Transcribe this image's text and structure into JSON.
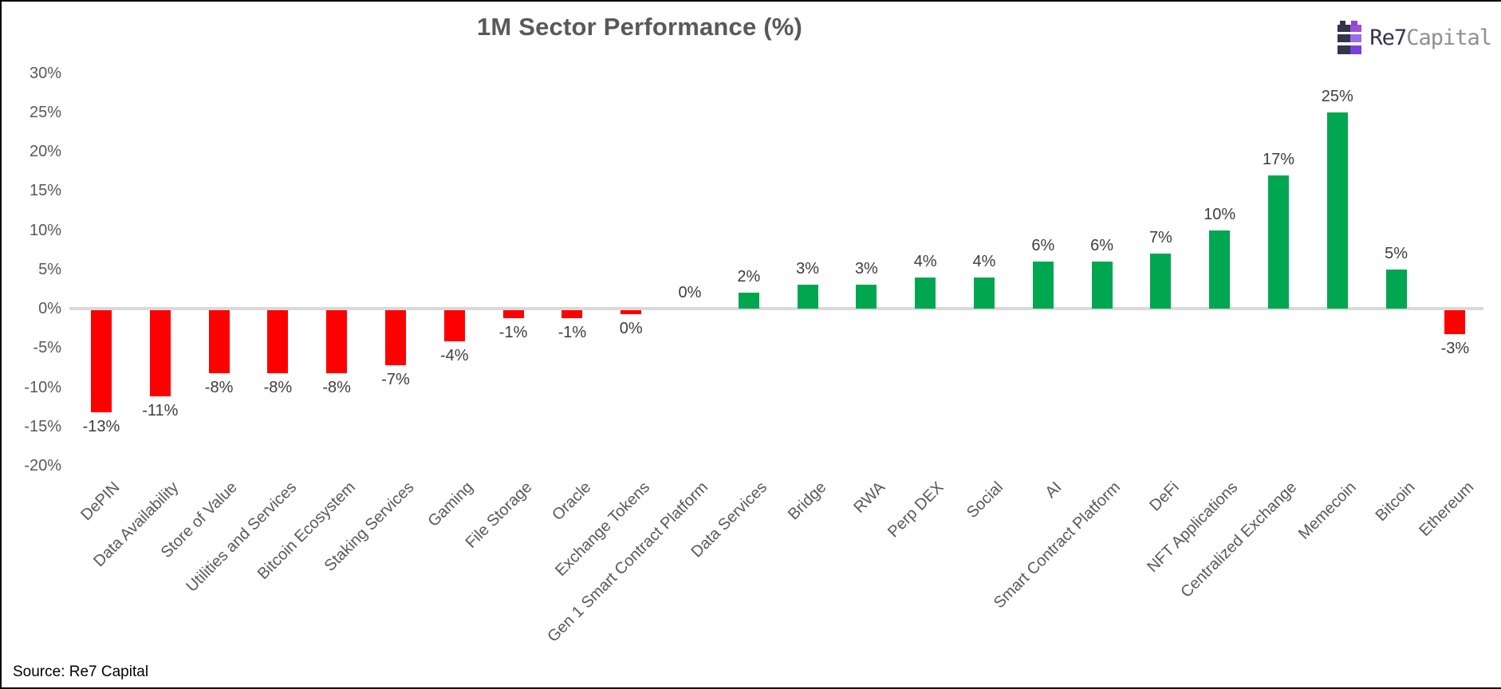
{
  "header": {
    "title": "1M Sector Performance (%)"
  },
  "logo": {
    "name_primary": "Re7",
    "name_secondary": "Capital",
    "icon": "castle-bars-icon",
    "colors": {
      "navy": "#32324c",
      "purple": "#8b46e0",
      "light_purple": "#9d6ae8",
      "gray_text": "#8e8e96"
    }
  },
  "footer": {
    "source": "Source: Re7 Capital"
  },
  "chart_data": {
    "type": "bar",
    "title": "1M Sector Performance (%)",
    "categories": [
      "DePIN",
      "Data Availability",
      "Store of Value",
      "Utilities and Services",
      "Bitcoin Ecosystem",
      "Staking Services",
      "Gaming",
      "File Storage",
      "Oracle",
      "Exchange Tokens",
      "Gen 1 Smart Contract Platform",
      "Data Services",
      "Bridge",
      "RWA",
      "Perp DEX",
      "Social",
      "AI",
      "Smart Contract Platform",
      "DeFi",
      "NFT Applications",
      "Centralized Exchange",
      "Memecoin",
      "Bitcoin",
      "Ethereum"
    ],
    "values": [
      -13,
      -11,
      -8,
      -8,
      -8,
      -7,
      -4,
      -1,
      -1,
      0,
      0,
      2,
      3,
      3,
      4,
      4,
      6,
      6,
      7,
      10,
      17,
      25,
      5,
      -3
    ],
    "labels": [
      "-13%",
      "-11%",
      "-8%",
      "-8%",
      "-8%",
      "-7%",
      "-4%",
      "-1%",
      "-1%",
      "0%",
      "0%",
      "2%",
      "3%",
      "3%",
      "4%",
      "4%",
      "6%",
      "6%",
      "7%",
      "10%",
      "17%",
      "25%",
      "5%",
      "-3%"
    ],
    "render_values": [
      -13,
      -11,
      -8,
      -8,
      -8,
      -7,
      -4,
      -1,
      -1,
      -0.5,
      0,
      2,
      3,
      3,
      4,
      4,
      6,
      6,
      7,
      10,
      17,
      25,
      5,
      -3
    ],
    "xlabel": "",
    "ylabel": "",
    "ylim": [
      -20,
      30
    ],
    "ytick_step": 5,
    "ytick_labels": [
      "30%",
      "25%",
      "20%",
      "15%",
      "10%",
      "5%",
      "0%",
      "-5%",
      "-10%",
      "-15%",
      "-20%"
    ],
    "ytick_values": [
      30,
      25,
      20,
      15,
      10,
      5,
      0,
      -5,
      -10,
      -15,
      -20
    ],
    "grid": "off",
    "legend": "none",
    "colors": {
      "positive": "#00a650",
      "negative": "#fe0000",
      "zero_axis_line": "#d9d9d9",
      "title_text": "#595959",
      "tick_text": "#595959",
      "value_label_text": "#3d3d3d"
    }
  }
}
